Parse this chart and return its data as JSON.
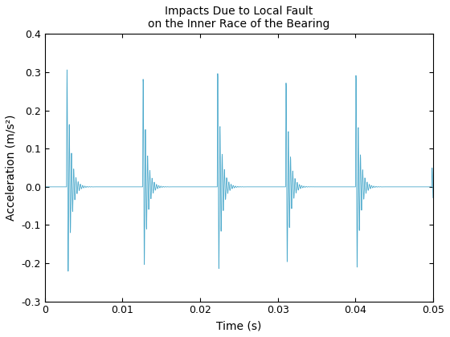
{
  "title": "Impacts Due to Local Fault\non the Inner Race of the Bearing",
  "xlabel": "Time (s)",
  "ylabel": "Acceleration (m/s²)",
  "xlim": [
    0,
    0.05
  ],
  "ylim": [
    -0.3,
    0.4
  ],
  "line_color": "#4DAACC",
  "line_width": 0.6,
  "fs": 50000,
  "duration": 0.05,
  "impact_period": 0.0098,
  "impact_times": [
    0.0028,
    0.0126,
    0.0222,
    0.031,
    0.04,
    0.0498
  ],
  "amplitudes": [
    0.31,
    0.285,
    0.3,
    0.275,
    0.295,
    0.05
  ],
  "neg_amplitudes": [
    0.295,
    0.255,
    0.265,
    0.24,
    0.26,
    0.04
  ],
  "damping": 2200,
  "natural_freq": 3500,
  "background_color": "#ffffff",
  "yticks": [
    -0.3,
    -0.2,
    -0.1,
    0.0,
    0.1,
    0.2,
    0.3,
    0.4
  ],
  "xticks": [
    0,
    0.01,
    0.02,
    0.03,
    0.04,
    0.05
  ]
}
